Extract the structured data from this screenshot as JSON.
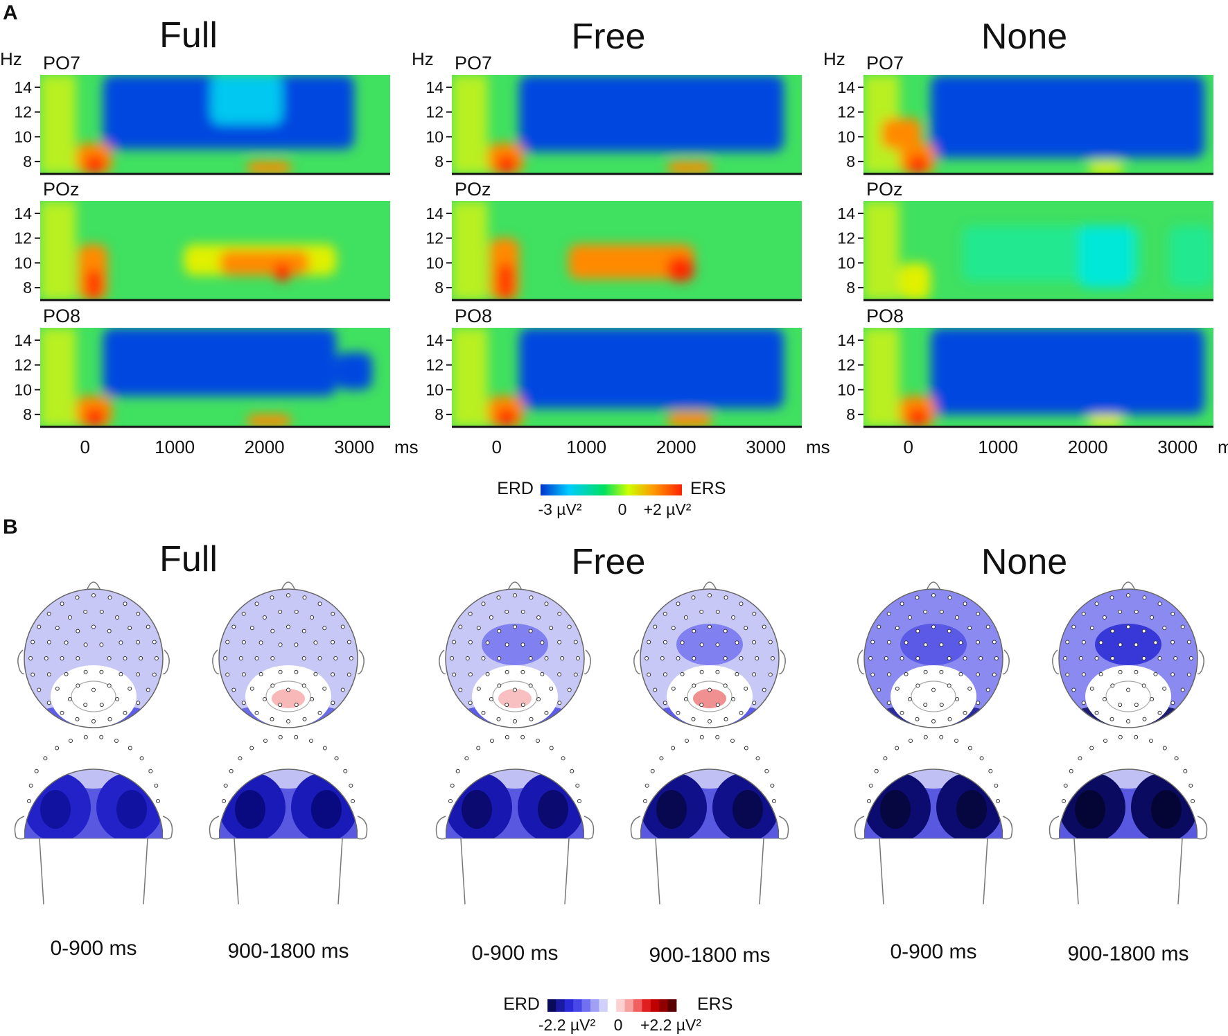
{
  "panel_a": {
    "letter": "A",
    "conditions": [
      "Full",
      "Free",
      "None"
    ],
    "channels": [
      "PO7",
      "POz",
      "PO8"
    ],
    "y_unit": "Hz",
    "y_ticks": [
      "14",
      "12",
      "10",
      "8"
    ],
    "x_ticks": [
      "0",
      "1000",
      "2000",
      "3000"
    ],
    "x_unit": "ms",
    "colorbar": {
      "left_label": "ERD",
      "right_label": "ERS",
      "tick_min": "-3 µV²",
      "tick_mid": "0",
      "tick_max": "+2 µV²",
      "colors": [
        "#0033cc",
        "#00ccff",
        "#00e060",
        "#ccff00",
        "#ff9900",
        "#ff2200"
      ]
    }
  },
  "panel_b": {
    "letter": "B",
    "conditions": [
      "Full",
      "Free",
      "None"
    ],
    "time_windows": [
      "0-900 ms",
      "900-1800 ms"
    ],
    "colorbar": {
      "left_label": "ERD",
      "right_label": "ERS",
      "tick_min": "-2.2 µV²",
      "tick_mid": "0",
      "tick_max": "+2.2 µV²",
      "colors": [
        "#0a0a5a",
        "#1a1aa0",
        "#2a2ad8",
        "#4848e8",
        "#7070f0",
        "#a0a0f4",
        "#d0d0fa",
        "#ffffff",
        "#ffd0d0",
        "#f8a0a0",
        "#f06060",
        "#e02020",
        "#c00000",
        "#900000",
        "#5a0000"
      ]
    }
  },
  "chart_data": {
    "type": "heatmap",
    "x_range_ms": [
      -500,
      3400
    ],
    "y_range_hz": [
      7,
      15
    ],
    "zlim": [
      -3,
      2
    ],
    "zunit": "µV²"
  }
}
